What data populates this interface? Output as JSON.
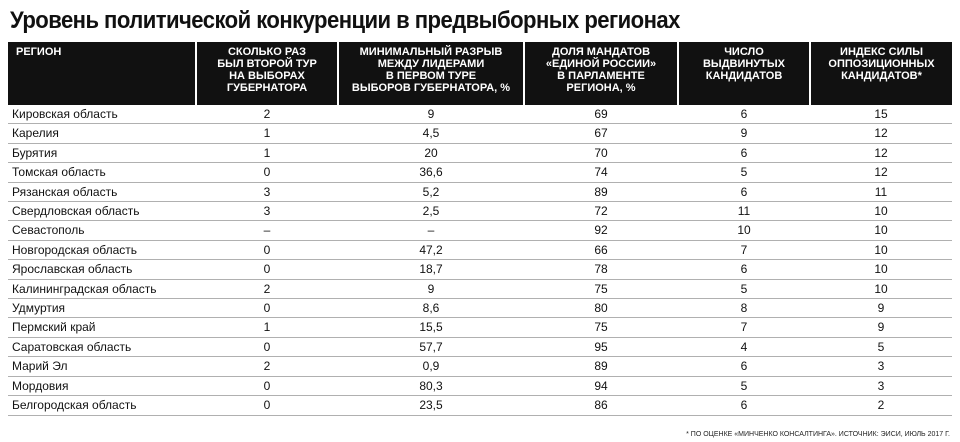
{
  "title": "Уровень политической конкуренции в предвыборных регионах",
  "columns": [
    {
      "lines": [
        "Регион"
      ]
    },
    {
      "lines": [
        "Сколько раз",
        "был второй тур",
        "на выборах",
        "губернатора"
      ]
    },
    {
      "lines": [
        "Минимальный разрыв",
        "между лидерами",
        "в первом туре",
        "выборов губернатора, %"
      ]
    },
    {
      "lines": [
        "Доля мандатов",
        "«Единой России»",
        "в парламенте",
        "региона, %"
      ]
    },
    {
      "lines": [
        "Число",
        "выдвинутых",
        "кандидатов"
      ]
    },
    {
      "lines": [
        "Индекс силы",
        "оппозиционных",
        "кандидатов*"
      ]
    }
  ],
  "rows": [
    [
      "Кировская область",
      "2",
      "9",
      "69",
      "6",
      "15"
    ],
    [
      "Карелия",
      "1",
      "4,5",
      "67",
      "9",
      "12"
    ],
    [
      "Бурятия",
      "1",
      "20",
      "70",
      "6",
      "12"
    ],
    [
      "Томская область",
      "0",
      "36,6",
      "74",
      "5",
      "12"
    ],
    [
      "Рязанская область",
      "3",
      "5,2",
      "89",
      "6",
      "11"
    ],
    [
      "Свердловская область",
      "3",
      "2,5",
      "72",
      "11",
      "10"
    ],
    [
      "Севастополь",
      "–",
      "–",
      "92",
      "10",
      "10"
    ],
    [
      "Новгородская область",
      "0",
      "47,2",
      "66",
      "7",
      "10"
    ],
    [
      "Ярославская область",
      "0",
      "18,7",
      "78",
      "6",
      "10"
    ],
    [
      "Калининградская область",
      "2",
      "9",
      "75",
      "5",
      "10"
    ],
    [
      "Удмуртия",
      "0",
      "8,6",
      "80",
      "8",
      "9"
    ],
    [
      "Пермский край",
      "1",
      "15,5",
      "75",
      "7",
      "9"
    ],
    [
      "Саратовская область",
      "0",
      "57,7",
      "95",
      "4",
      "5"
    ],
    [
      "Марий Эл",
      "2",
      "0,9",
      "89",
      "6",
      "3"
    ],
    [
      "Мордовия",
      "0",
      "80,3",
      "94",
      "5",
      "3"
    ],
    [
      "Белгородская область",
      "0",
      "23,5",
      "86",
      "6",
      "2"
    ]
  ],
  "footnote": "* По оценке «Минченко консалтинга». Источник: ЭИСИ, июль 2017 г."
}
